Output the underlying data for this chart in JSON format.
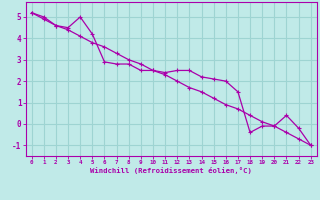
{
  "xlabel": "Windchill (Refroidissement éolien,°C)",
  "bg_color": "#c0eae8",
  "grid_color": "#9ed4d2",
  "line_color": "#aa00aa",
  "spine_color": "#aa00aa",
  "x_data": [
    0,
    1,
    2,
    3,
    4,
    5,
    6,
    7,
    8,
    9,
    10,
    11,
    12,
    13,
    14,
    15,
    16,
    17,
    18,
    19,
    20,
    21,
    22,
    23
  ],
  "y_series1": [
    5.2,
    5.0,
    4.6,
    4.5,
    5.0,
    4.2,
    2.9,
    2.8,
    2.8,
    2.5,
    2.5,
    2.4,
    2.5,
    2.5,
    2.2,
    2.1,
    2.0,
    1.5,
    -0.4,
    -0.1,
    -0.1,
    0.4,
    -0.2,
    -1.0
  ],
  "y_series2": [
    5.2,
    4.9,
    4.6,
    4.4,
    4.1,
    3.8,
    3.6,
    3.3,
    3.0,
    2.8,
    2.5,
    2.3,
    2.0,
    1.7,
    1.5,
    1.2,
    0.9,
    0.7,
    0.4,
    0.1,
    -0.1,
    -0.4,
    -0.7,
    -1.0
  ],
  "ylim": [
    -1.5,
    5.7
  ],
  "xlim": [
    -0.5,
    23.5
  ],
  "yticks": [
    -1,
    0,
    1,
    2,
    3,
    4,
    5
  ],
  "xticks": [
    0,
    1,
    2,
    3,
    4,
    5,
    6,
    7,
    8,
    9,
    10,
    11,
    12,
    13,
    14,
    15,
    16,
    17,
    18,
    19,
    20,
    21,
    22,
    23
  ]
}
